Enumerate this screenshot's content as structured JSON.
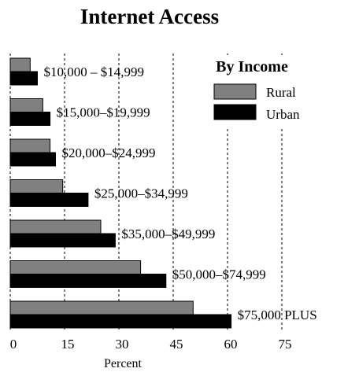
{
  "chart_data": {
    "type": "bar",
    "orientation": "horizontal",
    "title": "Internet Access",
    "xlabel": "Percent",
    "ylabel": "",
    "xlim": [
      0,
      75
    ],
    "xticks": [
      0,
      15,
      30,
      45,
      60,
      75
    ],
    "grid": "vertical dashed",
    "legend": {
      "title": "By Income",
      "placement": "top-right"
    },
    "categories": [
      "$10,000 – $14,999",
      "$15,000–$19,999",
      "$20,000–$24,999",
      "$25,000–$34,999",
      "$35,000–$49,999",
      "$50,000–$74,999",
      "$75,000 PLUS"
    ],
    "series": [
      {
        "name": "Rural",
        "color": "#808080",
        "values": [
          5.5,
          9.0,
          11.0,
          14.5,
          25.0,
          36.0,
          50.5
        ]
      },
      {
        "name": "Urban",
        "color": "#000000",
        "values": [
          7.5,
          11.0,
          12.5,
          21.5,
          29.0,
          43.0,
          61.0
        ]
      }
    ]
  }
}
